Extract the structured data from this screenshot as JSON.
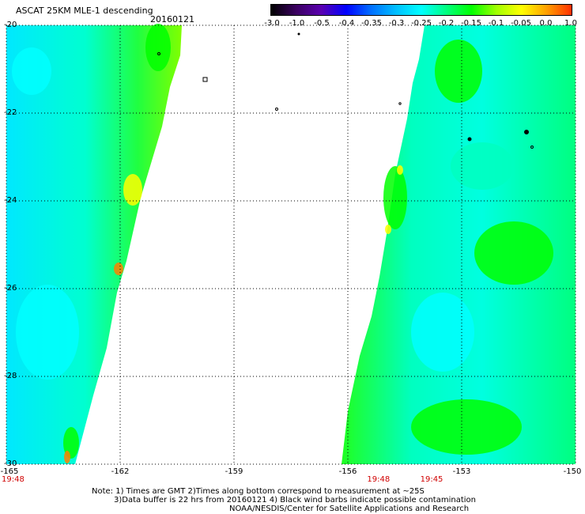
{
  "header": {
    "title": "ASCAT 25KM MLE-1 descending",
    "date": "20160121"
  },
  "colorbar": {
    "labels": [
      "-3.0",
      "-1.0",
      "-0.5",
      "-0.4",
      "-0.35",
      "-0.3",
      "-0.25",
      "-0.2",
      "-0.15",
      "-0.1",
      "-0.05",
      "0.0",
      "1.0"
    ],
    "colors": [
      "#000000",
      "#3a0060",
      "#5a00b0",
      "#0000ff",
      "#0070ff",
      "#00c0ff",
      "#00ffff",
      "#00ff80",
      "#00ff00",
      "#a0ff00",
      "#ffff00",
      "#ffa000",
      "#ff3000"
    ]
  },
  "map": {
    "lat_labels": [
      "-20",
      "-22",
      "-24",
      "-26",
      "-28",
      "-30"
    ],
    "lon_labels": [
      "-165",
      "-162",
      "-159",
      "-156",
      "-153",
      "-150"
    ],
    "time_labels": [
      {
        "text": "19:48",
        "lon": -165
      },
      {
        "text": "19:48",
        "lon": -155.2
      },
      {
        "text": "19:45",
        "lon": -153.8
      }
    ],
    "background_color": "#ffffff",
    "swath_colors": {
      "cyan": "#00ffff",
      "green": "#00ff00",
      "aqua": "#00ffc0",
      "yellow": "#ffff00",
      "orange": "#ff8000"
    }
  },
  "notes": {
    "line1": "Note: 1) Times are GMT 2)Times along bottom correspond to measurement at ~25S",
    "line2": "3)Data buffer is 22 hrs from 20160121 4) Black wind barbs indicate possible contamination",
    "line3": "NOAA/NESDIS/Center for Satellite Applications and Research"
  }
}
